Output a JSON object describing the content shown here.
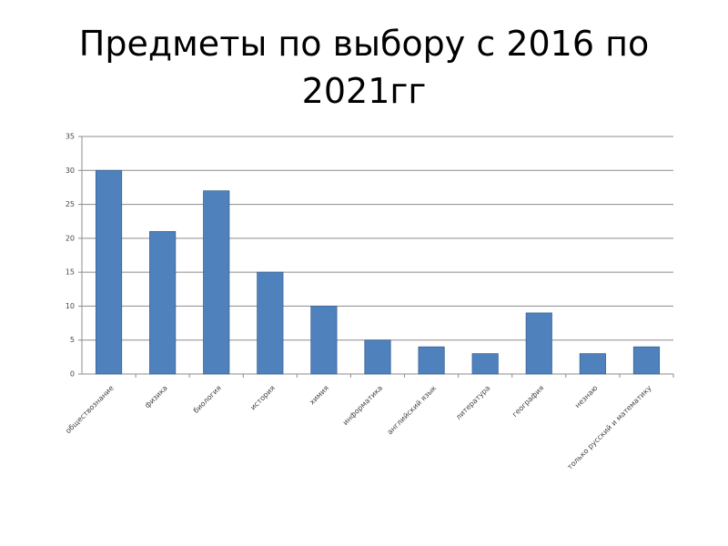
{
  "chart_data": {
    "type": "bar",
    "title": "Предметы по выбору с 2016 по 2021гг",
    "categories": [
      "обществознание",
      "физика",
      "биология",
      "история",
      "химия",
      "информатика",
      "английский язык",
      "литература",
      "география",
      "незнаю",
      "только русский и математику"
    ],
    "values": [
      30,
      21,
      27,
      15,
      10,
      5,
      4,
      3,
      9,
      3,
      4
    ],
    "color": "#4f81bd",
    "ylim": [
      0,
      35
    ],
    "yticks": [
      0,
      5,
      10,
      15,
      20,
      25,
      30,
      35
    ],
    "grid": true
  }
}
